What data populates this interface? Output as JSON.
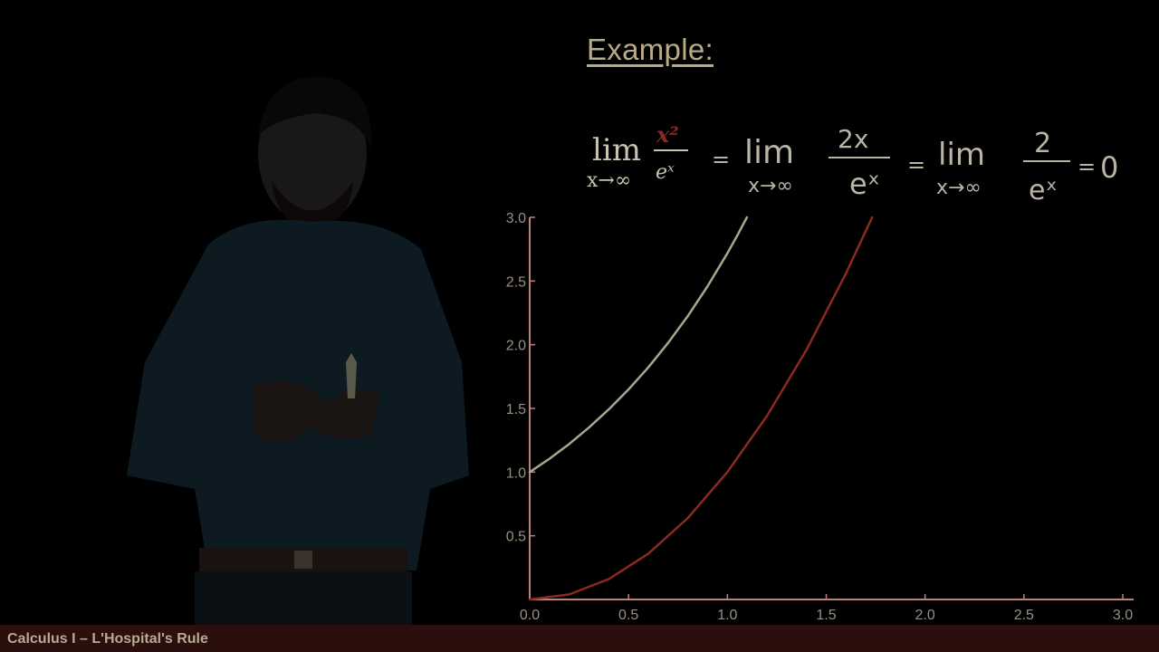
{
  "slide": {
    "heading": "Example:",
    "footer": "Calculus I – L'Hospital's Rule"
  },
  "equation": {
    "lim_word": "lim",
    "lim_sub": "x→∞",
    "numerator_1": "x²",
    "denominator_1": "eˣ",
    "eq_1": "=",
    "lim_2": "lim",
    "lim_2_sub": "x→∞",
    "numerator_2": "2x",
    "denominator_2": "eˣ",
    "eq_2": "=",
    "lim_3": "lim",
    "lim_3_sub": "x→∞",
    "numerator_3": "2",
    "denominator_3": "eˣ",
    "eq_3": "=",
    "result": "0"
  },
  "colors": {
    "background": "#000000",
    "axis": "#b98477",
    "curve_exp": "#a9a58f",
    "curve_square": "#8a2a22",
    "numerator_accent": "#8a2a22",
    "footer_bg": "#2a0f0c"
  },
  "chart_data": {
    "type": "line",
    "xlim": [
      0,
      3
    ],
    "ylim": [
      0,
      3
    ],
    "xticks": [
      "0.0",
      "0.5",
      "1.0",
      "1.5",
      "2.0",
      "2.5",
      "3.0"
    ],
    "yticks": [
      "0.5",
      "1.0",
      "1.5",
      "2.0",
      "2.5",
      "3.0"
    ],
    "grid": false,
    "series": [
      {
        "function": "e^x",
        "color": "#a9a58f",
        "x": [
          0,
          0.1,
          0.2,
          0.3,
          0.4,
          0.5,
          0.6,
          0.7,
          0.8,
          0.9,
          1.0,
          1.05,
          1.0986
        ],
        "y": [
          1.0,
          1.105,
          1.221,
          1.35,
          1.492,
          1.649,
          1.822,
          2.014,
          2.226,
          2.46,
          2.718,
          2.858,
          3.0
        ]
      },
      {
        "function": "x^2",
        "color": "#8a2a22",
        "x": [
          0,
          0.2,
          0.4,
          0.6,
          0.8,
          1.0,
          1.2,
          1.4,
          1.6,
          1.732
        ],
        "y": [
          0,
          0.04,
          0.16,
          0.36,
          0.64,
          1.0,
          1.44,
          1.96,
          2.56,
          3.0
        ]
      }
    ]
  }
}
